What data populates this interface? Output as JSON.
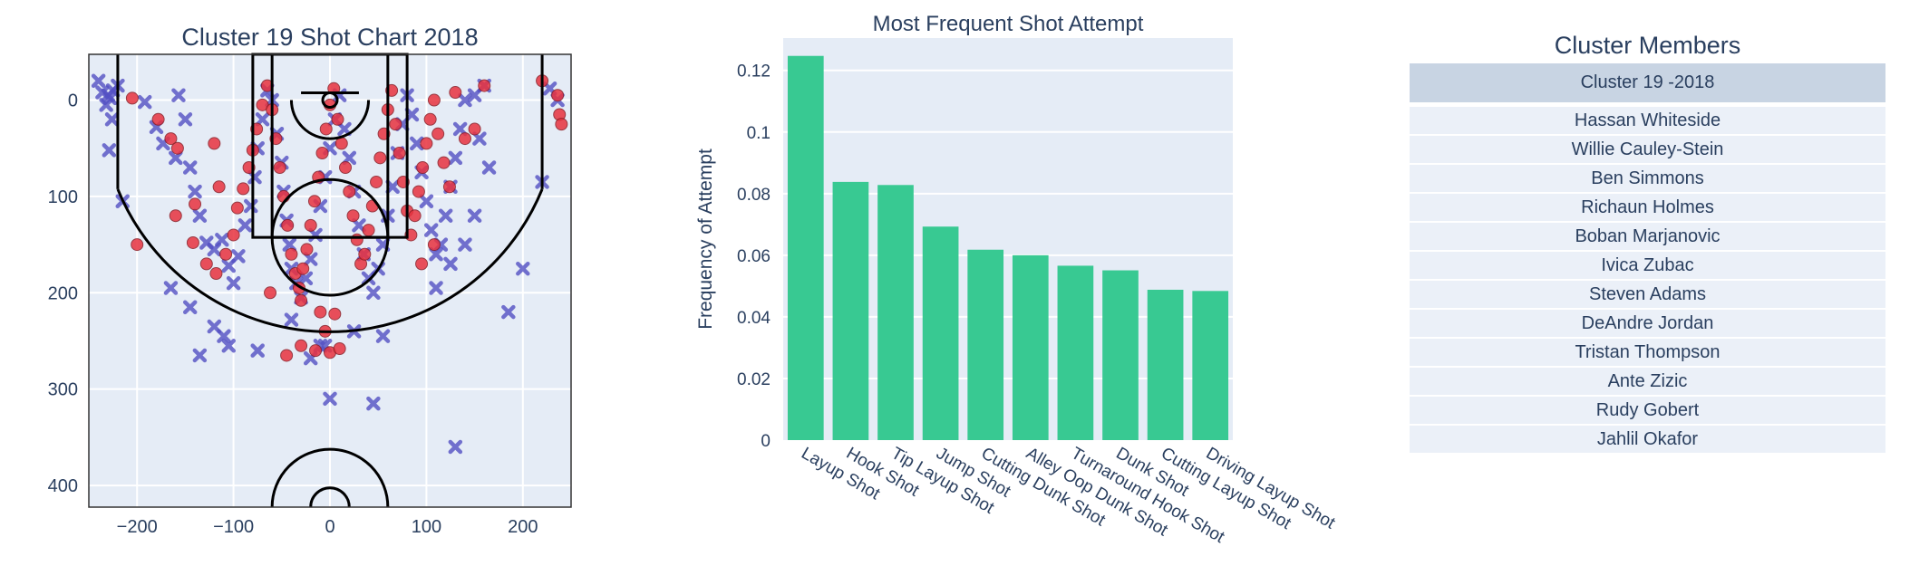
{
  "chart_data": [
    {
      "type": "scatter",
      "title": "Cluster 19 Shot Chart 2018",
      "xlim": [
        -250,
        250
      ],
      "ylim": [
        422.5,
        -47.5
      ],
      "x_ticks": [
        -200,
        -100,
        0,
        100,
        200
      ],
      "x_tick_labels": [
        "−200",
        "−100",
        "0",
        "100",
        "200"
      ],
      "y_ticks": [
        0,
        100,
        200,
        300,
        400
      ],
      "y_tick_labels": [
        "0",
        "100",
        "200",
        "300",
        "400"
      ],
      "grid": true,
      "series": [
        {
          "marker": "x",
          "color": "#5451c4",
          "points": [
            [
              -230,
              -5
            ],
            [
              -225,
              -10
            ],
            [
              -228,
              -2
            ],
            [
              -220,
              -15
            ],
            [
              -232,
              5
            ],
            [
              -226,
              20
            ],
            [
              -229,
              52
            ],
            [
              -215,
              105
            ],
            [
              -192,
              2
            ],
            [
              -180,
              28
            ],
            [
              -173,
              45
            ],
            [
              -160,
              60
            ],
            [
              -157,
              -5
            ],
            [
              -150,
              20
            ],
            [
              -145,
              70
            ],
            [
              -140,
              95
            ],
            [
              -135,
              120
            ],
            [
              -128,
              148
            ],
            [
              -120,
              155
            ],
            [
              -112,
              145
            ],
            [
              -105,
              172
            ],
            [
              -100,
              190
            ],
            [
              -95,
              162
            ],
            [
              -88,
              130
            ],
            [
              -82,
              110
            ],
            [
              -78,
              80
            ],
            [
              -75,
              50
            ],
            [
              -70,
              20
            ],
            [
              -65,
              -10
            ],
            [
              -60,
              0
            ],
            [
              -55,
              35
            ],
            [
              -50,
              65
            ],
            [
              -48,
              95
            ],
            [
              -45,
              125
            ],
            [
              -42,
              150
            ],
            [
              -40,
              175
            ],
            [
              -35,
              190
            ],
            [
              -30,
              205
            ],
            [
              -25,
              185
            ],
            [
              -20,
              165
            ],
            [
              -15,
              140
            ],
            [
              -10,
              110
            ],
            [
              -5,
              80
            ],
            [
              0,
              50
            ],
            [
              5,
              20
            ],
            [
              10,
              -5
            ],
            [
              15,
              30
            ],
            [
              20,
              60
            ],
            [
              25,
              95
            ],
            [
              30,
              130
            ],
            [
              35,
              160
            ],
            [
              40,
              185
            ],
            [
              45,
              200
            ],
            [
              50,
              175
            ],
            [
              55,
              150
            ],
            [
              60,
              120
            ],
            [
              65,
              90
            ],
            [
              70,
              55
            ],
            [
              75,
              25
            ],
            [
              80,
              -5
            ],
            [
              85,
              15
            ],
            [
              90,
              45
            ],
            [
              95,
              75
            ],
            [
              100,
              105
            ],
            [
              105,
              135
            ],
            [
              110,
              160
            ],
            [
              115,
              150
            ],
            [
              120,
              120
            ],
            [
              125,
              90
            ],
            [
              130,
              60
            ],
            [
              135,
              30
            ],
            [
              140,
              0
            ],
            [
              150,
              -5
            ],
            [
              155,
              40
            ],
            [
              160,
              -15
            ],
            [
              165,
              70
            ],
            [
              150,
              120
            ],
            [
              140,
              150
            ],
            [
              125,
              170
            ],
            [
              110,
              195
            ],
            [
              -165,
              195
            ],
            [
              -145,
              215
            ],
            [
              -120,
              235
            ],
            [
              -110,
              245
            ],
            [
              -135,
              265
            ],
            [
              -105,
              255
            ],
            [
              -75,
              260
            ],
            [
              -40,
              228
            ],
            [
              -5,
              255
            ],
            [
              25,
              240
            ],
            [
              55,
              245
            ],
            [
              -20,
              268
            ],
            [
              -10,
              255
            ],
            [
              0,
              310
            ],
            [
              45,
              315
            ],
            [
              130,
              360
            ],
            [
              185,
              220
            ],
            [
              200,
              175
            ],
            [
              220,
              85
            ],
            [
              228,
              -12
            ],
            [
              236,
              0
            ],
            [
              -240,
              -20
            ],
            [
              -236,
              -8
            ]
          ]
        },
        {
          "marker": "circle",
          "color": "#e8333f",
          "points": [
            [
              -205,
              -2
            ],
            [
              -178,
              20
            ],
            [
              -165,
              40
            ],
            [
              -158,
              50
            ],
            [
              -160,
              120
            ],
            [
              -142,
              148
            ],
            [
              -128,
              170
            ],
            [
              -118,
              180
            ],
            [
              -108,
              160
            ],
            [
              -100,
              140
            ],
            [
              -96,
              112
            ],
            [
              -90,
              92
            ],
            [
              -84,
              70
            ],
            [
              -80,
              52
            ],
            [
              -76,
              30
            ],
            [
              -70,
              5
            ],
            [
              -65,
              -15
            ],
            [
              -60,
              10
            ],
            [
              -56,
              40
            ],
            [
              -52,
              70
            ],
            [
              -48,
              100
            ],
            [
              -44,
              130
            ],
            [
              -40,
              160
            ],
            [
              -36,
              180
            ],
            [
              -32,
              195
            ],
            [
              -28,
              175
            ],
            [
              -24,
              155
            ],
            [
              -20,
              130
            ],
            [
              -16,
              105
            ],
            [
              -12,
              80
            ],
            [
              -8,
              55
            ],
            [
              -4,
              30
            ],
            [
              0,
              5
            ],
            [
              4,
              -12
            ],
            [
              8,
              20
            ],
            [
              12,
              45
            ],
            [
              16,
              70
            ],
            [
              20,
              95
            ],
            [
              24,
              120
            ],
            [
              28,
              145
            ],
            [
              32,
              170
            ],
            [
              36,
              160
            ],
            [
              40,
              135
            ],
            [
              44,
              110
            ],
            [
              48,
              85
            ],
            [
              52,
              60
            ],
            [
              56,
              35
            ],
            [
              60,
              10
            ],
            [
              64,
              -10
            ],
            [
              68,
              25
            ],
            [
              72,
              55
            ],
            [
              76,
              85
            ],
            [
              80,
              115
            ],
            [
              84,
              140
            ],
            [
              88,
              120
            ],
            [
              92,
              95
            ],
            [
              96,
              70
            ],
            [
              100,
              45
            ],
            [
              104,
              20
            ],
            [
              108,
              0
            ],
            [
              112,
              35
            ],
            [
              118,
              65
            ],
            [
              124,
              90
            ],
            [
              130,
              -8
            ],
            [
              140,
              40
            ],
            [
              150,
              30
            ],
            [
              160,
              -15
            ],
            [
              220,
              -20
            ],
            [
              236,
              -5
            ],
            [
              238,
              15
            ],
            [
              240,
              25
            ],
            [
              -62,
              200
            ],
            [
              -30,
              208
            ],
            [
              -10,
              220
            ],
            [
              5,
              222
            ],
            [
              -5,
              240
            ],
            [
              -30,
              255
            ],
            [
              -15,
              260
            ],
            [
              0,
              262
            ],
            [
              10,
              258
            ],
            [
              -45,
              265
            ],
            [
              -200,
              150
            ],
            [
              -140,
              108
            ],
            [
              -120,
              45
            ],
            [
              -115,
              90
            ],
            [
              95,
              170
            ],
            [
              108,
              150
            ]
          ]
        }
      ]
    },
    {
      "type": "bar",
      "title": "Most Frequent Shot Attempt",
      "ylabel": "Frequency of Attempt",
      "categories": [
        "Layup Shot",
        "Hook Shot",
        "Tip Layup Shot",
        "Jump Shot",
        "Cutting Dunk Shot",
        "Alley Oop Dunk Shot",
        "Turnaround Hook Shot",
        "Dunk Shot",
        "Cutting Layup Shot",
        "Driving Layup Shot"
      ],
      "values": [
        0.1247,
        0.0838,
        0.0828,
        0.0693,
        0.0618,
        0.06,
        0.0566,
        0.0551,
        0.0488,
        0.0484
      ],
      "ylim": [
        0,
        0.1305
      ],
      "y_ticks": [
        0,
        0.02,
        0.04,
        0.06,
        0.08,
        0.1,
        0.12
      ],
      "y_tick_labels": [
        "0",
        "0.02",
        "0.04",
        "0.06",
        "0.08",
        "0.1",
        "0.12"
      ],
      "bar_color": "#38c992",
      "grid": true
    },
    {
      "type": "table",
      "title": "Cluster Members",
      "header": "Cluster 19 -2018",
      "rows": [
        "Hassan Whiteside",
        "Willie Cauley-Stein",
        "Ben Simmons",
        "Richaun Holmes",
        "Boban Marjanovic",
        "Ivica Zubac",
        "Steven Adams",
        "DeAndre Jordan",
        "Tristan Thompson",
        "Ante Zizic",
        "Rudy Gobert",
        "Jahlil Okafor"
      ]
    }
  ]
}
